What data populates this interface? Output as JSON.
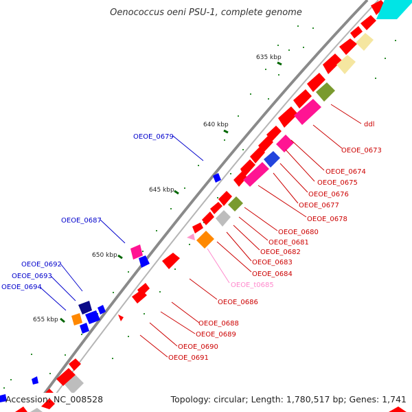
{
  "title": "Oenococcus oeni PSU-1, complete genome",
  "footer": {
    "accession": "Accession: NC_008528",
    "topology": "Topology: circular; Length: 1,780,517 bp; Genes: 1,741"
  },
  "ticks": [
    "635 kbp",
    "640 kbp",
    "645 kbp",
    "650 kbp",
    "655 kbp"
  ],
  "labels_left": [
    "OEOE_0679",
    "OEOE_0687",
    "OEOE_0692",
    "OEOE_0693",
    "OEOE_0694"
  ],
  "labels_right": [
    "ddl",
    "OEOE_0673",
    "OEOE_0674",
    "OEOE_0675",
    "OEOE_0676",
    "OEOE_0677",
    "OEOE_0678",
    "OEOE_0680",
    "OEOE_0681",
    "OEOE_0682",
    "OEOE_0683",
    "OEOE_0684",
    "OEOE_t0685",
    "OEOE_0686",
    "OEOE_0688",
    "OEOE_0689",
    "OEOE_0690",
    "OEOE_0691"
  ],
  "colors": {
    "backbone": "#7a7a7a",
    "cds": "#ff0000",
    "left_labels": "#0000cc",
    "right_labels": "#cc0000",
    "trna_label": "#ff88cc",
    "tick_marks": "#006600"
  }
}
